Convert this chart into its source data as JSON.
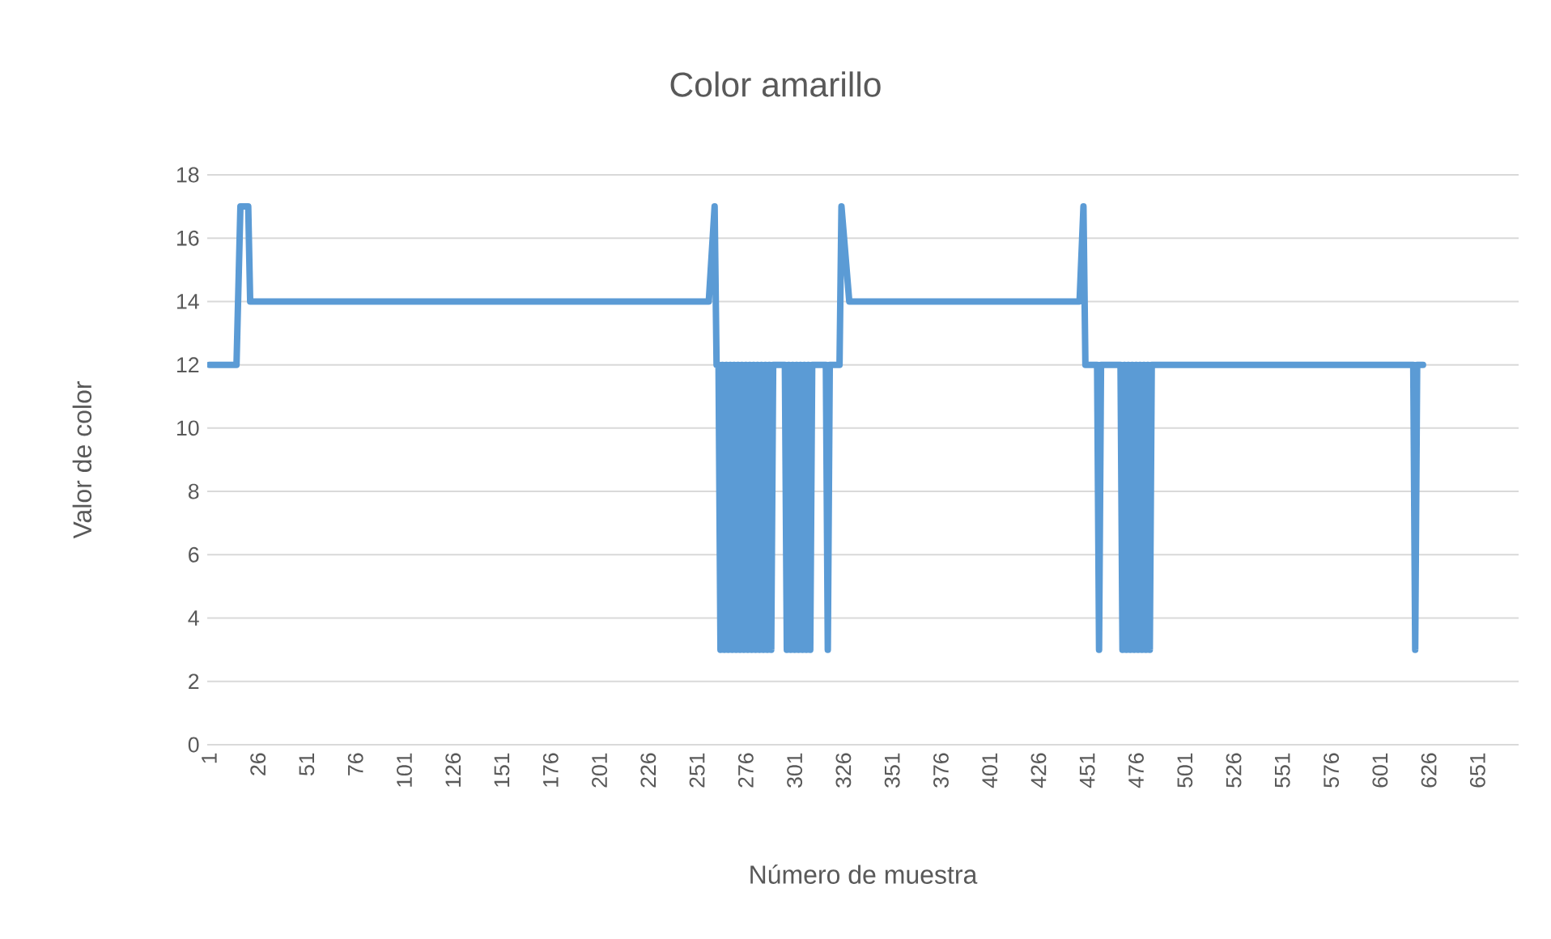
{
  "chart_data": {
    "type": "line",
    "title": "Color amarillo",
    "xlabel": "Número de muestra",
    "ylabel": "Valor de color",
    "x": [
      1,
      15,
      17,
      21,
      22,
      257,
      260,
      261,
      262,
      263,
      264,
      265,
      266,
      267,
      268,
      269,
      270,
      271,
      272,
      273,
      274,
      275,
      276,
      277,
      278,
      279,
      280,
      281,
      282,
      283,
      284,
      285,
      286,
      287,
      288,
      289,
      290,
      296,
      297,
      298,
      299,
      300,
      301,
      302,
      303,
      304,
      305,
      306,
      307,
      308,
      309,
      310,
      317,
      318,
      319,
      324,
      325,
      329,
      447,
      449,
      450,
      456,
      457,
      458,
      468,
      469,
      470,
      471,
      472,
      473,
      474,
      475,
      476,
      477,
      478,
      479,
      480,
      481,
      482,
      483,
      484,
      618,
      619,
      620,
      623
    ],
    "values": [
      12,
      12,
      17,
      17,
      14,
      14,
      17,
      12,
      12,
      3,
      12,
      3,
      12,
      3,
      12,
      3,
      12,
      3,
      12,
      3,
      12,
      3,
      12,
      3,
      12,
      3,
      12,
      3,
      12,
      3,
      12,
      3,
      12,
      3,
      12,
      3,
      12,
      12,
      3,
      12,
      3,
      12,
      3,
      12,
      3,
      12,
      3,
      12,
      3,
      12,
      3,
      12,
      12,
      3,
      12,
      12,
      17,
      14,
      14,
      17,
      12,
      12,
      3,
      12,
      12,
      3,
      12,
      3,
      12,
      3,
      12,
      3,
      12,
      3,
      12,
      3,
      12,
      3,
      12,
      3,
      12,
      12,
      3,
      12,
      12
    ],
    "color": "#5b9bd5",
    "xlim": [
      0,
      672
    ],
    "ylim": [
      0,
      18
    ],
    "xticks": [
      1,
      26,
      51,
      76,
      101,
      126,
      151,
      176,
      201,
      226,
      251,
      276,
      301,
      326,
      351,
      376,
      401,
      426,
      451,
      476,
      501,
      526,
      551,
      576,
      601,
      626,
      651
    ],
    "yticks": [
      0,
      2,
      4,
      6,
      8,
      10,
      12,
      14,
      16,
      18
    ],
    "grid": "y"
  }
}
